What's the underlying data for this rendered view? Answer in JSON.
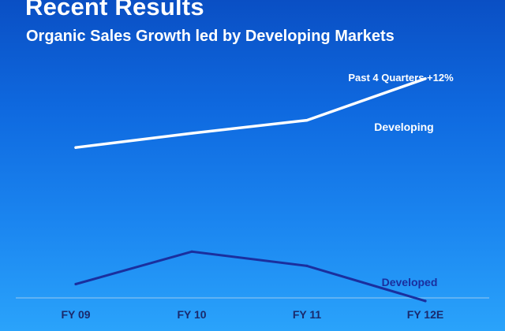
{
  "slide": {
    "title": "Recent Results",
    "subtitle": "Organic Sales Growth led by Developing Markets"
  },
  "chart_data": {
    "type": "line",
    "categories": [
      "FY 09",
      "FY 10",
      "FY 11",
      "FY 12E"
    ],
    "series": [
      {
        "name": "Developing",
        "color": "#ffffff",
        "values": [
          10.5,
          11.6,
          12.6,
          15.8
        ]
      },
      {
        "name": "Developed",
        "color": "#1a2f9e",
        "values": [
          0,
          2.5,
          1.4,
          -1.3
        ]
      }
    ],
    "ylim": [
      -3,
      17
    ],
    "grid": false,
    "annotations": [
      {
        "text": "Past 4 Quarters +12%",
        "series": "Developing",
        "color": "#ffffff"
      }
    ]
  }
}
